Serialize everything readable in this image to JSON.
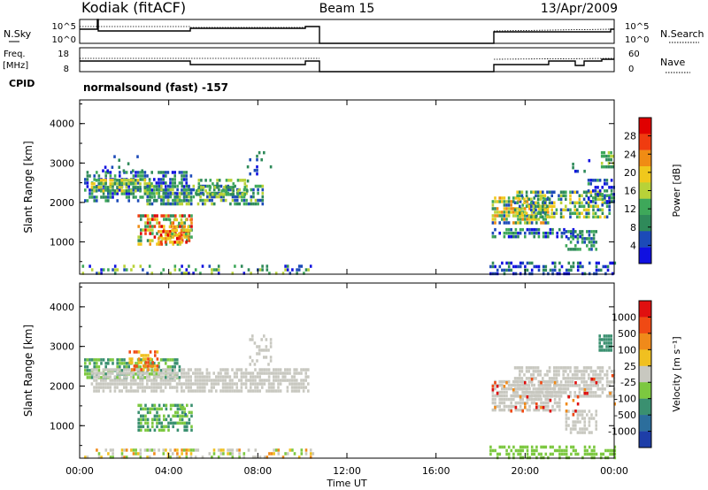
{
  "header": {
    "station": "Kodiak (fitACF)",
    "beam": "Beam 15",
    "date": "13/Apr/2009"
  },
  "top_panels": {
    "nsky_label": "N.Sky",
    "nsky_ticks": [
      "10^5",
      "10^0"
    ],
    "nsearch_label": "N.Search",
    "nsearch_ticks": [
      "10^5",
      "10^0"
    ],
    "freq_label_1": "Freq.",
    "freq_label_2": "[MHz]",
    "freq_ticks": [
      "18",
      "8"
    ],
    "nave_label": "Nave",
    "nave_ticks": [
      "60",
      "0"
    ],
    "cpid_label": "CPID",
    "cpid_text": "normalsound (fast) -157"
  },
  "chart_data": [
    {
      "type": "heatmap",
      "quantity": "Power",
      "ylabel": "Slant Range [km]",
      "ylim": [
        180,
        4600
      ],
      "yticks": [
        "1000",
        "2000",
        "3000",
        "4000"
      ],
      "xlim": [
        0,
        24
      ],
      "colorbar_label": "Power [dB]",
      "colorbar_ticks": [
        "4",
        "8",
        "12",
        "16",
        "20",
        "24",
        "28"
      ],
      "colorbar_range": [
        0,
        32
      ],
      "colors": [
        "#1010e0",
        "#1c4ab8",
        "#2f8a5a",
        "#3ea85a",
        "#b8d238",
        "#f0c81c",
        "#f08c14",
        "#f03c10",
        "#e00000"
      ],
      "data_intervals_hours": [
        [
          0,
          10.8
        ],
        [
          18.4,
          24
        ]
      ]
    },
    {
      "type": "heatmap",
      "quantity": "Velocity",
      "ylabel": "Slant Range [km]",
      "ylim": [
        180,
        4600
      ],
      "yticks": [
        "1000",
        "2000",
        "3000",
        "4000"
      ],
      "xlim": [
        0,
        24
      ],
      "xlabel": "Time UT",
      "xticks": [
        "00:00",
        "04:00",
        "08:00",
        "12:00",
        "16:00",
        "20:00",
        "00:00"
      ],
      "colorbar_label": "Velocity [m s⁻¹]",
      "colorbar_ticks": [
        "1000",
        "500",
        "100",
        "25",
        "-25",
        "-100",
        "-500",
        "-1000"
      ],
      "colors": [
        "#1e3ea8",
        "#2c6e9c",
        "#3a9070",
        "#7cc840",
        "#c8c8c0",
        "#f0c020",
        "#f08a1a",
        "#f04a14",
        "#e01010"
      ],
      "data_intervals_hours": [
        [
          0,
          10.8
        ],
        [
          18.4,
          24
        ]
      ]
    }
  ]
}
